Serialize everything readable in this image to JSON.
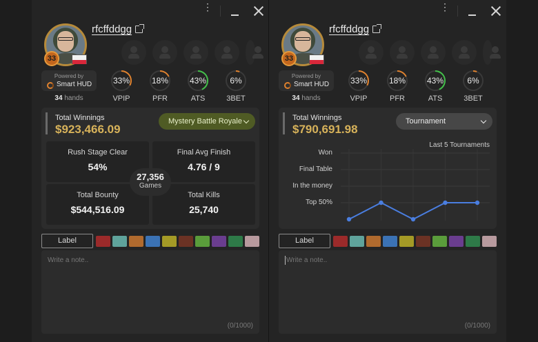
{
  "colors": {
    "gold": "#d7b25a",
    "ring_track": "#3a3a3a",
    "ring_orange": "#e0822e",
    "ring_green": "#43c04a",
    "chart_line": "#4a7ee0"
  },
  "panels": [
    {
      "username": "rfcffddgg",
      "level": "33",
      "hud": {
        "powered_by": "Powered by",
        "name": "Smart HUD",
        "hands_count": "34",
        "hands_label": "hands"
      },
      "stats": [
        {
          "value": "33%",
          "label": "VPIP",
          "pct": 33,
          "color": "orange"
        },
        {
          "value": "18%",
          "label": "PFR",
          "pct": 18,
          "color": "orange"
        },
        {
          "value": "43%",
          "label": "ATS",
          "pct": 43,
          "color": "green"
        },
        {
          "value": "6%",
          "label": "3BET",
          "pct": 6,
          "color": "orange"
        }
      ],
      "total_winnings_label": "Total Winnings",
      "total_winnings": "$923,466.09",
      "game_select": "Mystery Battle Royale",
      "cells": [
        {
          "title": "Rush Stage Clear",
          "value": "54%"
        },
        {
          "title": "Final Avg Finish",
          "value": "4.76 / 9"
        },
        {
          "title": "Total Bounty",
          "value": "$544,516.09"
        },
        {
          "title": "Total Kills",
          "value": "25,740"
        }
      ],
      "games": {
        "count": "27,356",
        "label": "Games"
      },
      "label_button": "Label",
      "note_placeholder": "Write a note..",
      "note_count": "(0/1000)"
    },
    {
      "username": "rfcffddgg",
      "level": "33",
      "hud": {
        "powered_by": "Powered by",
        "name": "Smart HUD",
        "hands_count": "34",
        "hands_label": "hands"
      },
      "stats": [
        {
          "value": "33%",
          "label": "VPIP",
          "pct": 33,
          "color": "orange"
        },
        {
          "value": "18%",
          "label": "PFR",
          "pct": 18,
          "color": "orange"
        },
        {
          "value": "43%",
          "label": "ATS",
          "pct": 43,
          "color": "green"
        },
        {
          "value": "6%",
          "label": "3BET",
          "pct": 6,
          "color": "orange"
        }
      ],
      "total_winnings_label": "Total Winnings",
      "total_winnings": "$790,691.98",
      "game_select": "Tournament",
      "label_button": "Label",
      "note_placeholder": "Write a note..",
      "note_count": "(0/1000)"
    }
  ],
  "chart_data": {
    "type": "line",
    "title": "Last 5 Tournaments",
    "categories": [
      "Won",
      "Final Table",
      "In the money",
      "Top 50%"
    ],
    "x": [
      1,
      2,
      3,
      4,
      5
    ],
    "series": [
      {
        "values": [
          0,
          1,
          0,
          1,
          1
        ]
      }
    ],
    "ylim": [
      0,
      4
    ],
    "grid": true
  },
  "swatch_colors": [
    "#9b2a2a",
    "#5fa39b",
    "#b06a2e",
    "#3b72b4",
    "#a49a26",
    "#6b3224",
    "#5a9c3b",
    "#6a3d8f",
    "#2e7a48",
    "#b89a9e"
  ]
}
